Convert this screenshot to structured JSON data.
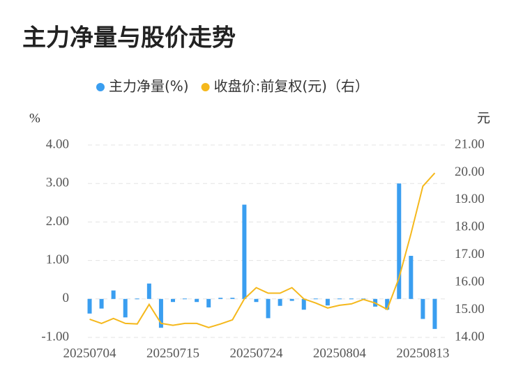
{
  "chart_data": {
    "type": "bar_line",
    "title": "主力净量与股价走势",
    "y_label": "%",
    "y2_label": "元",
    "categories": [
      "20250704",
      null,
      null,
      null,
      null,
      null,
      null,
      "20250715",
      null,
      null,
      null,
      null,
      null,
      null,
      "20250724",
      null,
      null,
      null,
      null,
      null,
      null,
      "20250804",
      null,
      null,
      null,
      null,
      null,
      null,
      "20250813",
      null
    ],
    "series": [
      {
        "name": "主力净量(%)",
        "type": "bar",
        "color": "#3a9ef0",
        "values": [
          -0.38,
          -0.25,
          0.22,
          -0.48,
          0.01,
          0.4,
          -0.75,
          -0.08,
          0.01,
          -0.08,
          -0.22,
          0.03,
          0.03,
          2.45,
          -0.08,
          -0.5,
          -0.18,
          -0.05,
          -0.28,
          0.01,
          -0.17,
          0.01,
          0.01,
          0.01,
          -0.2,
          -0.28,
          3.0,
          1.12,
          -0.52,
          -0.78
        ]
      },
      {
        "name": "收盘价:前复权(元)（右）",
        "type": "line",
        "axis": "y2",
        "color": "#f5b81c",
        "values": [
          14.66,
          14.51,
          14.69,
          14.51,
          14.49,
          15.2,
          14.51,
          14.44,
          14.51,
          14.51,
          14.36,
          14.49,
          14.64,
          15.4,
          15.81,
          15.61,
          15.61,
          15.81,
          15.4,
          15.25,
          15.07,
          15.17,
          15.22,
          15.38,
          15.25,
          15.02,
          16.17,
          17.77,
          19.5,
          19.98
        ]
      }
    ],
    "ylim": [
      -1,
      4
    ],
    "yticks": [
      {
        "value": -1,
        "label": "-1.00"
      },
      0,
      {
        "value": 1,
        "label": "1.00"
      },
      {
        "value": 2,
        "label": "2.00"
      },
      {
        "value": 3,
        "label": "3.00"
      },
      {
        "value": 4,
        "label": "4.00"
      }
    ],
    "y2lim": [
      14,
      21
    ],
    "y2ticks": [
      {
        "value": 14,
        "label": "14.00"
      },
      {
        "value": 15,
        "label": "15.00"
      },
      {
        "value": 16,
        "label": "16.00"
      },
      {
        "value": 17,
        "label": "17.00"
      },
      {
        "value": 18,
        "label": "18.00"
      },
      {
        "value": 19,
        "label": "19.00"
      },
      {
        "value": 20,
        "label": "20.00"
      },
      {
        "value": 21,
        "label": "21.00"
      }
    ],
    "grid": true
  }
}
